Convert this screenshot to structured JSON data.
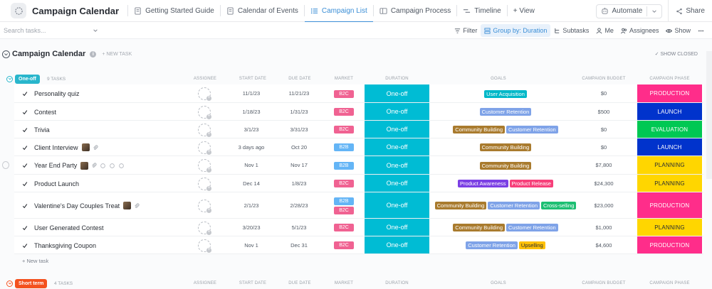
{
  "app": {
    "title": "Campaign Calendar"
  },
  "tabs": [
    {
      "label": "Getting Started Guide",
      "icon": "doc-icon"
    },
    {
      "label": "Calendar of Events",
      "icon": "doc-icon"
    },
    {
      "label": "Campaign List",
      "icon": "list-icon",
      "active": true
    },
    {
      "label": "Campaign Process",
      "icon": "board-icon"
    },
    {
      "label": "Timeline",
      "icon": "timeline-icon"
    }
  ],
  "add_view": "+ View",
  "automate": "Automate",
  "share": "Share",
  "search": {
    "placeholder": "Search tasks..."
  },
  "filters": {
    "filter": "Filter",
    "group_by": "Group by: Duration",
    "subtasks": "Subtasks",
    "me": "Me",
    "assignees": "Assignees",
    "show": "Show"
  },
  "list": {
    "title": "Campaign Calendar",
    "new_task": "+ NEW TASK",
    "show_closed": "SHOW CLOSED"
  },
  "columns": {
    "assignee": "ASSIGNEE",
    "start": "START DATE",
    "due": "DUE DATE",
    "market": "MARKET",
    "duration": "DURATION",
    "goals": "GOALS",
    "budget": "CAMPAIGN BUDGET",
    "phase": "CAMPAIGN PHASE"
  },
  "colors": {
    "b2c": "#f06292",
    "b2b": "#64b5f6",
    "duration": "#00bcd4",
    "user_acquisition": "#00b8c8",
    "customer_retention": "#7fa3e8",
    "community_building": "#a97b2e",
    "product_awareness": "#7b3fe4",
    "product_release": "#f7407a",
    "cross_selling": "#1dbf73",
    "upselling": "#ffc107",
    "production": "#ff2d8a",
    "launch": "#0033cc",
    "evaluation": "#00c853",
    "planning": "#ffd600"
  },
  "groups": [
    {
      "label": "One-off",
      "count": "9 TASKS",
      "color": "#29b6cc",
      "rows": [
        {
          "name": "Personality quiz",
          "start": "11/1/23",
          "due": "11/21/23",
          "market": [
            "B2C"
          ],
          "duration": "One-off",
          "goals": [
            "User Acquisition"
          ],
          "budget": "$0",
          "phase": "PRODUCTION"
        },
        {
          "name": "Contest",
          "start": "1/18/23",
          "due": "1/31/23",
          "market": [
            "B2C"
          ],
          "duration": "One-off",
          "goals": [
            "Customer Retention"
          ],
          "budget": "$500",
          "phase": "LAUNCH"
        },
        {
          "name": "Trivia",
          "start": "3/1/23",
          "due": "3/31/23",
          "market": [
            "B2C"
          ],
          "duration": "One-off",
          "goals": [
            "Community Building",
            "Customer Retention"
          ],
          "budget": "$0",
          "phase": "EVALUATION"
        },
        {
          "name": "Client Interview",
          "start": "3 days ago",
          "due": "Oct 20",
          "market": [
            "B2B"
          ],
          "duration": "One-off",
          "goals": [
            "Community Building"
          ],
          "budget": "$0",
          "phase": "LAUNCH"
        },
        {
          "name": "Year End Party",
          "start": "Nov 1",
          "due": "Nov 17",
          "market": [
            "B2B"
          ],
          "duration": "One-off",
          "goals": [
            "Community Building"
          ],
          "budget": "$7,800",
          "phase": "PLANNING"
        },
        {
          "name": "Product Launch",
          "start": "Dec 14",
          "due": "1/8/23",
          "market": [
            "B2C"
          ],
          "duration": "One-off",
          "goals": [
            "Product Awareness",
            "Product Release"
          ],
          "budget": "$24,300",
          "phase": "PLANNING"
        },
        {
          "name": "Valentine's Day Couples Treat",
          "start": "2/1/23",
          "due": "2/28/23",
          "market": [
            "B2B",
            "B2C"
          ],
          "duration": "One-off",
          "goals": [
            "Community Building",
            "Customer Retention",
            "Cross-selling"
          ],
          "budget": "$23,000",
          "phase": "PRODUCTION"
        },
        {
          "name": "User Generated Contest",
          "start": "3/20/23",
          "due": "5/1/23",
          "market": [
            "B2C"
          ],
          "duration": "One-off",
          "goals": [
            "Community Building",
            "Customer Retention"
          ],
          "budget": "$1,000",
          "phase": "PLANNING"
        },
        {
          "name": "Thanksgiving Coupon",
          "start": "Nov 1",
          "due": "Dec 31",
          "market": [
            "B2C"
          ],
          "duration": "One-off",
          "goals": [
            "Customer Retention",
            "Upselling"
          ],
          "budget": "$4,600",
          "phase": "PRODUCTION"
        }
      ],
      "new_task": "+ New task"
    },
    {
      "label": "Short term",
      "count": "4 TASKS",
      "color": "#f4511e"
    }
  ]
}
